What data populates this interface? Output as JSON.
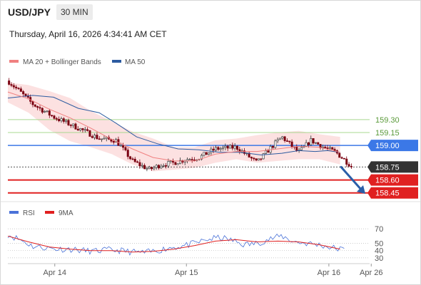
{
  "header": {
    "symbol": "USD/JPY",
    "timeframe": "30 MIN",
    "datetime": "Thursday, April 16, 2026 4:34:41 AM CET"
  },
  "colors": {
    "ma20": "#f08080",
    "ma50": "#2c5ba0",
    "bollinger_fill": "#fcdcdc",
    "resistance": "#a8d890",
    "pivot": "#3b78e7",
    "current": "#333333",
    "support": "#e02020",
    "rsi": "#4a72d8",
    "rsi_ma": "#e02020",
    "arrow": "#2a5ea8",
    "candle_up": "#2f2f2f",
    "candle_down": "#7a0010"
  },
  "chart_data": [
    {
      "type": "candlestick",
      "ylim": [
        158.39,
        159.72
      ],
      "xaxis": {
        "ticks": [
          {
            "label": "Apr 14",
            "x": 0.113
          },
          {
            "label": "Apr 15",
            "x": 0.43
          },
          {
            "label": "Apr 16",
            "x": 0.773
          },
          {
            "label": "Apr 26",
            "x": 0.875
          }
        ]
      },
      "legend": [
        {
          "label": "MA 20 + Bollinger Bands",
          "color": "#f08080"
        },
        {
          "label": "MA 50",
          "color": "#2c5ba0"
        }
      ],
      "levels": [
        {
          "label": "159.30",
          "value": 159.3,
          "role": "resistance"
        },
        {
          "label": "159.15",
          "value": 159.15,
          "role": "resistance"
        },
        {
          "label": "159.00",
          "value": 159.0,
          "role": "pivot"
        },
        {
          "label": "158.75",
          "value": 158.75,
          "role": "current"
        },
        {
          "label": "158.60",
          "value": 158.6,
          "role": "support"
        },
        {
          "label": "158.45",
          "value": 158.45,
          "role": "support"
        }
      ],
      "price_path": [
        [
          0.0,
          159.75
        ],
        [
          0.03,
          159.62
        ],
        [
          0.06,
          159.48
        ],
        [
          0.11,
          159.33
        ],
        [
          0.17,
          159.2
        ],
        [
          0.22,
          159.08
        ],
        [
          0.26,
          159.06
        ],
        [
          0.3,
          158.82
        ],
        [
          0.34,
          158.72
        ],
        [
          0.37,
          158.78
        ],
        [
          0.4,
          158.8
        ],
        [
          0.43,
          158.84
        ],
        [
          0.46,
          158.86
        ],
        [
          0.5,
          158.96
        ],
        [
          0.55,
          158.98
        ],
        [
          0.6,
          158.8
        ],
        [
          0.63,
          158.96
        ],
        [
          0.66,
          159.1
        ],
        [
          0.7,
          158.92
        ],
        [
          0.73,
          159.06
        ],
        [
          0.76,
          158.98
        ],
        [
          0.79,
          158.92
        ],
        [
          0.83,
          158.75
        ]
      ],
      "ma20_path": [
        [
          0.0,
          159.62
        ],
        [
          0.05,
          159.54
        ],
        [
          0.1,
          159.42
        ],
        [
          0.15,
          159.32
        ],
        [
          0.2,
          159.2
        ],
        [
          0.25,
          159.07
        ],
        [
          0.3,
          158.96
        ],
        [
          0.35,
          158.86
        ],
        [
          0.4,
          158.82
        ],
        [
          0.45,
          158.82
        ],
        [
          0.5,
          158.9
        ],
        [
          0.55,
          158.93
        ],
        [
          0.6,
          158.93
        ],
        [
          0.65,
          158.96
        ],
        [
          0.7,
          158.99
        ],
        [
          0.75,
          158.98
        ],
        [
          0.8,
          158.92
        ]
      ],
      "ma50_path": [
        [
          0.0,
          159.55
        ],
        [
          0.06,
          159.58
        ],
        [
          0.11,
          159.56
        ],
        [
          0.17,
          159.43
        ],
        [
          0.22,
          159.38
        ],
        [
          0.26,
          159.26
        ],
        [
          0.31,
          159.1
        ],
        [
          0.36,
          159.02
        ],
        [
          0.41,
          158.96
        ],
        [
          0.46,
          158.95
        ],
        [
          0.51,
          158.92
        ],
        [
          0.56,
          158.92
        ],
        [
          0.61,
          158.89
        ],
        [
          0.66,
          158.91
        ],
        [
          0.7,
          158.94
        ],
        [
          0.74,
          158.93
        ],
        [
          0.77,
          158.94
        ],
        [
          0.8,
          158.92
        ]
      ],
      "band_path": [
        [
          0.0,
          159.73,
          159.5
        ],
        [
          0.05,
          159.7,
          159.38
        ],
        [
          0.1,
          159.63,
          159.18
        ],
        [
          0.15,
          159.55,
          159.05
        ],
        [
          0.2,
          159.4,
          158.98
        ],
        [
          0.25,
          159.28,
          158.9
        ],
        [
          0.3,
          159.16,
          158.78
        ],
        [
          0.35,
          159.08,
          158.7
        ],
        [
          0.4,
          158.98,
          158.72
        ],
        [
          0.45,
          158.98,
          158.74
        ],
        [
          0.5,
          159.06,
          158.8
        ],
        [
          0.55,
          159.08,
          158.84
        ],
        [
          0.6,
          159.12,
          158.8
        ],
        [
          0.65,
          159.15,
          158.82
        ],
        [
          0.7,
          159.17,
          158.84
        ],
        [
          0.75,
          159.13,
          158.84
        ],
        [
          0.8,
          159.1,
          158.78
        ]
      ]
    },
    {
      "type": "line",
      "ylim": [
        22,
        78
      ],
      "yticks": [
        "70",
        "50",
        "40",
        "30"
      ],
      "ytick_values": [
        70,
        50,
        40,
        30
      ],
      "legend": [
        {
          "label": "RSI",
          "color": "#4a72d8"
        },
        {
          "label": "9MA",
          "color": "#e02020"
        }
      ],
      "rsi_path": [
        [
          0.0,
          62
        ],
        [
          0.03,
          55
        ],
        [
          0.06,
          46
        ],
        [
          0.09,
          44
        ],
        [
          0.12,
          42
        ],
        [
          0.15,
          42
        ],
        [
          0.18,
          40
        ],
        [
          0.21,
          39
        ],
        [
          0.24,
          41
        ],
        [
          0.27,
          40
        ],
        [
          0.3,
          38
        ],
        [
          0.33,
          37
        ],
        [
          0.36,
          40
        ],
        [
          0.39,
          44
        ],
        [
          0.42,
          46
        ],
        [
          0.45,
          50
        ],
        [
          0.48,
          55
        ],
        [
          0.51,
          58
        ],
        [
          0.54,
          54
        ],
        [
          0.57,
          48
        ],
        [
          0.6,
          50
        ],
        [
          0.63,
          56
        ],
        [
          0.66,
          60
        ],
        [
          0.69,
          52
        ],
        [
          0.72,
          50
        ],
        [
          0.75,
          48
        ],
        [
          0.78,
          44
        ],
        [
          0.81,
          41
        ]
      ],
      "ma9_path": [
        [
          0.0,
          60
        ],
        [
          0.05,
          52
        ],
        [
          0.1,
          45
        ],
        [
          0.15,
          42
        ],
        [
          0.2,
          40
        ],
        [
          0.25,
          40
        ],
        [
          0.3,
          38
        ],
        [
          0.35,
          39
        ],
        [
          0.4,
          42
        ],
        [
          0.45,
          47
        ],
        [
          0.5,
          53
        ],
        [
          0.55,
          55
        ],
        [
          0.6,
          52
        ],
        [
          0.65,
          53
        ],
        [
          0.7,
          52
        ],
        [
          0.75,
          48
        ],
        [
          0.8,
          42
        ]
      ]
    }
  ]
}
